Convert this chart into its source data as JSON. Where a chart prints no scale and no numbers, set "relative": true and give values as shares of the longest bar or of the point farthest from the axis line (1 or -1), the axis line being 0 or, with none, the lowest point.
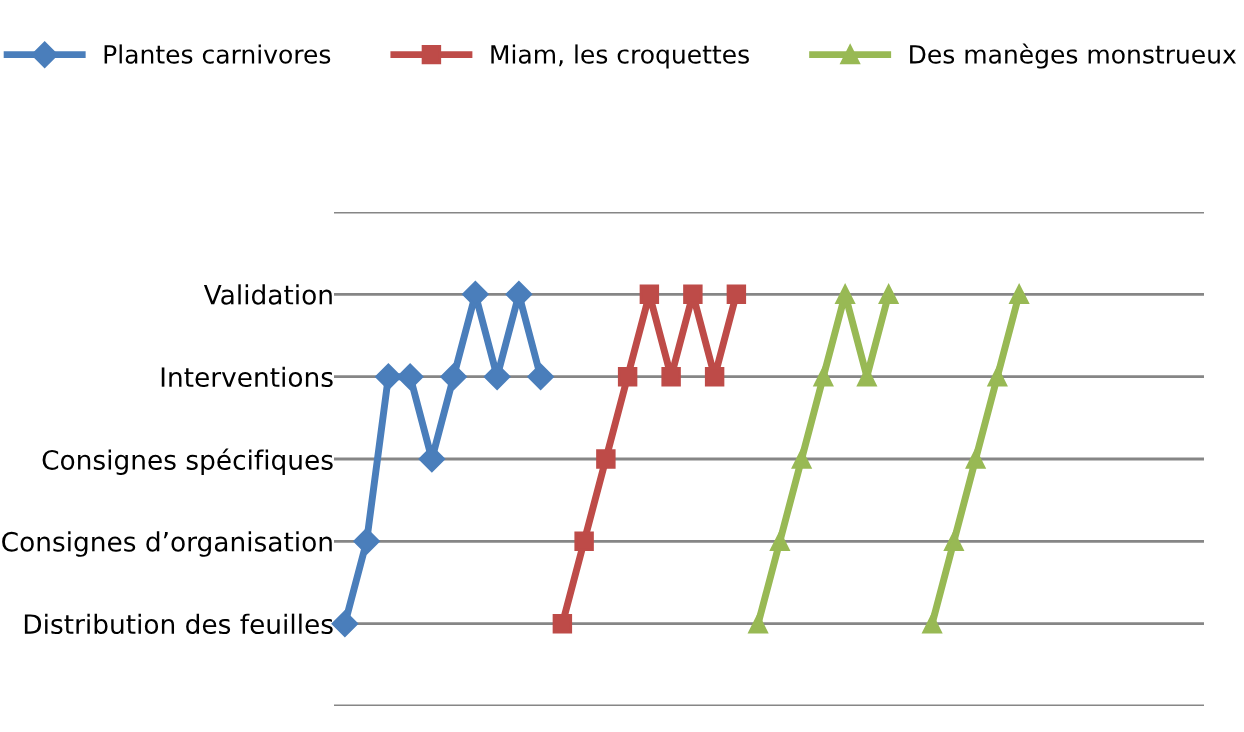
{
  "chart_data": {
    "type": "line",
    "relative": true,
    "categories": [
      null,
      null,
      null,
      null,
      null,
      null,
      null,
      null,
      null,
      null,
      null,
      null,
      null,
      null,
      null,
      null,
      null,
      null,
      null,
      null,
      null,
      null,
      null,
      null,
      null,
      null,
      null,
      null,
      null,
      null,
      null,
      null,
      null,
      null,
      null,
      null,
      null,
      null,
      null,
      null
    ],
    "y_categories": [
      null,
      "Validation",
      "Interventions",
      "Consignes spécifiques",
      "Consignes d’organisation",
      "Distribution des feuilles",
      null
    ],
    "series": [
      {
        "name": "Plantes carnivores",
        "color": "#4a7ebb",
        "marker": "diamond",
        "values": [
          0.2,
          0.4,
          0.8,
          0.8,
          0.6,
          0.8,
          1,
          0.8,
          1,
          0.8,
          null,
          null,
          null,
          null,
          null,
          null,
          null,
          null,
          null,
          null,
          null,
          null,
          null,
          null,
          null,
          null,
          null,
          null,
          null,
          null,
          null,
          null,
          null,
          null,
          null,
          null,
          null,
          null,
          null,
          null
        ]
      },
      {
        "name": "Miam, les croquettes",
        "color": "#be4b48",
        "marker": "square",
        "values": [
          null,
          null,
          null,
          null,
          null,
          null,
          null,
          null,
          null,
          null,
          0.2,
          0.4,
          0.6,
          0.8,
          1,
          0.8,
          1,
          0.8,
          1,
          null,
          null,
          null,
          null,
          null,
          null,
          null,
          null,
          null,
          null,
          null,
          null,
          null,
          null,
          null,
          null,
          null,
          null,
          null,
          null,
          null
        ]
      },
      {
        "name": "Des manèges monstrueux",
        "color": "#98b954",
        "marker": "triangle",
        "values": [
          null,
          null,
          null,
          null,
          null,
          null,
          null,
          null,
          null,
          null,
          null,
          null,
          null,
          null,
          null,
          null,
          null,
          null,
          null,
          0.2,
          0.4,
          0.6,
          0.8,
          1,
          0.8,
          1,
          null,
          0.2,
          0.4,
          0.6,
          0.8,
          1,
          null,
          null,
          null,
          null,
          null,
          null,
          null,
          null
        ]
      }
    ],
    "grid": "y",
    "legend": "top",
    "line_style": "solid"
  }
}
